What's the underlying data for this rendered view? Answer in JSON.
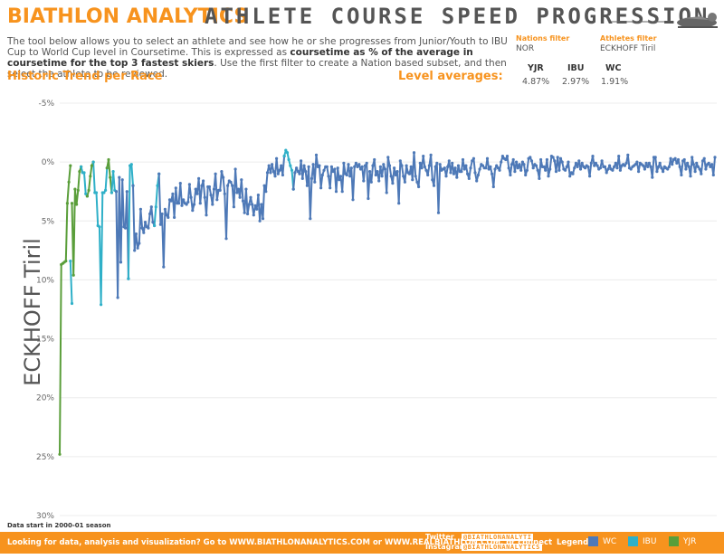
{
  "header": {
    "brand": "BIATHLON ANALYTICS",
    "title": "ATHLETE COURSE SPEED PROGRESSION",
    "intro_part1": "The tool below allows you to select an athlete and see how he or she progresses from Junior/Youth to IBU Cup to World Cup level in Coursetime. This is expressed as ",
    "intro_bold": "coursetime as % of the average in coursetime for the top 3 fastest skiers",
    "intro_part2": ". Use the first filter to create a Nation based subset, and then select the athlete to be reviewed."
  },
  "filters": {
    "nations_label": "Nations filter",
    "nations_value": "NOR",
    "athletes_label": "Athletes filter",
    "athletes_value": "ECKHOFF Tiril"
  },
  "sections": {
    "trend_title": "Historic Trend per Race",
    "averages_title": "Level averages:"
  },
  "level_averages": [
    {
      "label": "YJR",
      "value": "4.87%"
    },
    {
      "label": "IBU",
      "value": "2.97%"
    },
    {
      "label": "WC",
      "value": "1.91%"
    }
  ],
  "colors": {
    "WC": "#4e79b7",
    "IBU": "#2fb0c8",
    "YJR": "#5a9e3a",
    "accent": "#f7931e"
  },
  "chart_data": {
    "type": "line",
    "ylabel": "ECKHOFF Tiril",
    "yticks": [
      "-5%",
      "0%",
      "5%",
      "10%",
      "15%",
      "20%",
      "25%",
      "30%"
    ],
    "ylim": [
      -5,
      30
    ],
    "y_reversed": true,
    "grid": true,
    "x_label": "",
    "series": [
      {
        "name": "YJR",
        "values": [
          24.8,
          8.7,
          8.6,
          8.5,
          8.4,
          3.5,
          1.7,
          0.3
        ]
      },
      {
        "name": "IBU",
        "values": [
          8.4,
          12.0
        ]
      },
      {
        "name": "YJR",
        "values": [
          3.5,
          9.6,
          2.3,
          3.6,
          2.4,
          0.8,
          0.4
        ]
      },
      {
        "name": "IBU",
        "values": [
          0.4,
          0.9,
          0.9,
          2.7,
          2.9
        ]
      },
      {
        "name": "YJR",
        "values": [
          2.9,
          2.4,
          1.2,
          0.3,
          0.0
        ]
      },
      {
        "name": "IBU",
        "values": [
          0.0,
          2.6,
          2.6,
          5.4,
          5.5,
          12.1,
          2.6,
          2.6,
          2.4,
          0.5
        ]
      },
      {
        "name": "YJR",
        "values": [
          0.5,
          -0.2,
          1.3,
          2.6
        ]
      },
      {
        "name": "IBU",
        "values": [
          2.6,
          0.8,
          2.4,
          2.5
        ]
      },
      {
        "name": "WC",
        "values": [
          2.5,
          11.5,
          1.3,
          8.5,
          1.5,
          5.5,
          5.6,
          2.5,
          9.9
        ]
      },
      {
        "name": "IBU",
        "values": [
          9.9,
          0.3,
          0.2,
          2.0
        ]
      },
      {
        "name": "WC",
        "values": [
          2.0,
          7.5,
          6.1,
          7.3,
          6.9,
          4.0,
          5.6,
          6.0,
          5.1,
          5.5,
          5.6,
          4.4,
          3.8,
          5.1,
          5.4
        ]
      },
      {
        "name": "IBU",
        "values": [
          5.4,
          3.8,
          2.0,
          1.0
        ]
      },
      {
        "name": "WC",
        "values": [
          1.0,
          5.3,
          4.4,
          8.9,
          4.0,
          4.5,
          4.7,
          3.2,
          3.3,
          2.7,
          4.7,
          2.2,
          3.5,
          3.5,
          1.8,
          3.7,
          3.2,
          3.5,
          3.6,
          3.4,
          1.9,
          3.0,
          4.1,
          3.6,
          2.3,
          2.7,
          1.4,
          3.5,
          2.0,
          1.6,
          3.0,
          4.5,
          2.1,
          2.1,
          2.8,
          3.6,
          2.3,
          1.0,
          3.2,
          2.4,
          2.4,
          0.8,
          1.3,
          2.7,
          6.5,
          2.0,
          1.6,
          1.7,
          2.0,
          3.8,
          0.6,
          2.6,
          2.3,
          3.0,
          1.5,
          3.3,
          4.3,
          2.3,
          4.4,
          3.6,
          3.0,
          3.6,
          4.5,
          3.7,
          4.0,
          2.8,
          5.0,
          3.6,
          4.8,
          2.0,
          2.5,
          0.9,
          0.3,
          0.9,
          0.2,
          0.8,
          1.2,
          -0.3,
          1.0,
          0.7,
          0.3,
          1.1,
          -0.5
        ]
      },
      {
        "name": "IBU",
        "values": [
          -0.5,
          -1.0,
          -0.8,
          -0.2,
          0.3,
          0.7,
          2.3
        ]
      },
      {
        "name": "WC",
        "values": [
          2.3,
          0.9,
          0.5,
          0.8,
          1.0,
          -0.1,
          1.4,
          0.3,
          0.8,
          2.0,
          0.4,
          4.8,
          1.4,
          0.2,
          1.7,
          -0.6,
          0.4,
          0.3,
          2.2,
          1.1,
          0.7,
          0.4,
          0.4,
          1.2,
          2.2,
          0.4,
          0.8,
          0.6,
          2.5,
          0.5,
          1.5,
          1.2,
          2.5,
          0.1,
          1.0,
          1.1,
          0.2,
          1.2,
          0.5,
          3.2,
          0.4,
          0.1,
          0.4,
          0.2,
          0.6,
          0.4,
          1.6,
          0.3,
          0.1,
          3.1,
          0.8,
          1.7,
          0.3,
          -0.2,
          1.1,
          0.8,
          1.6,
          0.4,
          1.2,
          0.2,
          0.6,
          2.6,
          -0.4,
          0.3,
          1.2,
          1.8,
          0.5,
          1.1,
          0.8,
          3.5,
          -0.1,
          0.3,
          1.2,
          1.7,
          0.3,
          0.9,
          1.0,
          0.4,
          1.5,
          -0.8,
          1.2,
          1.7,
          2.1,
          0.1,
          0.5,
          -0.5,
          0.4,
          0.7,
          1.1,
          0.3,
          -0.6,
          1.5,
          2.0,
          0.4,
          0.1,
          4.3,
          0.2,
          0.7,
          0.6,
          0.5,
          1.2,
          0.4,
          -0.1,
          0.9,
          0.1,
          1.0,
          0.5,
          1.3,
          0.3,
          0.8,
          0.8,
          -0.2,
          0.6,
          0.3,
          1.0,
          1.4,
          0.5,
          -0.1,
          -0.3,
          0.9,
          1.6,
          1.1,
          0.6,
          0.2,
          0.3,
          0.5,
          0.5,
          -0.3,
          0.6,
          0.4,
          1.0,
          2.1,
          0.6,
          0.3,
          0.5,
          0.7,
          0.0,
          -0.5,
          -0.3,
          -0.2,
          -0.5,
          0.5,
          1.1,
          0.2,
          -0.2,
          0.8,
          0.0,
          0.5,
          0.2,
          0.7,
          0.0,
          0.2,
          1.1,
          0.7,
          -0.3,
          -0.4,
          -0.1,
          0.5,
          0.2,
          0.3,
          0.7,
          1.4,
          -0.2,
          0.4,
          0.4,
          0.7,
          -0.2,
          1.2,
          0.6,
          -0.5,
          -0.4,
          -0.1,
          0.8,
          -0.4,
          0.7,
          -0.3,
          0.0,
          0.6,
          0.7,
          0.4,
          0.0,
          1.2,
          0.9,
          1.0,
          0.5,
          0.1,
          0.4,
          -0.1,
          0.6,
          0.1,
          0.4,
          0.5,
          0.3,
          0.4,
          1.2,
          0.1,
          -0.5,
          0.3,
          0.1,
          0.3,
          0.6,
          0.5,
          -0.1,
          0.4,
          0.4,
          0.9,
          0.6,
          0.3,
          0.6,
          0.7,
          0.4,
          0.1,
          0.5,
          -0.5,
          0.7,
          0.3,
          0.2,
          0.3,
          0.1,
          -0.6,
          0.5,
          0.6,
          0.4,
          0.3,
          0.2,
          0.0,
          0.8,
          0.1,
          0.2,
          0.3,
          0.6,
          0.1,
          0.4,
          0.1,
          0.4,
          1.3,
          -0.4,
          -0.4,
          0.8,
          0.4,
          0.1,
          0.5,
          0.8,
          0.4,
          0.5,
          0.6,
          0.4,
          -0.3,
          0.2,
          -0.2,
          -0.3,
          0.1,
          -0.2,
          0.4,
          1.1,
          -0.1,
          -0.2,
          0.6,
          0.1,
          0.4,
          1.2,
          -0.4,
          0.2,
          0.8,
          0.1,
          0.4,
          0.6,
          1.0,
          -0.1,
          -0.3,
          0.6,
          0.2,
          0.1,
          0.4,
          0.2,
          1.1,
          -0.4
        ]
      }
    ]
  },
  "footnote": "Data start in 2000-01 season",
  "footer": {
    "cta": "Looking for data, analysis and visualization? Go to WWW.BIATHLONANALYTICS.COM or WWW.REALBIATHLON.COM, or connect",
    "twitter_label": "Twitter",
    "twitter_handle": "@BIATHLONANALYTI",
    "instagram_label": "Instagram",
    "instagram_handle": "@BIATHLONANALYTICS",
    "legend_title": "Legend:",
    "legend": [
      {
        "label": "WC",
        "color": "#4e79b7"
      },
      {
        "label": "IBU",
        "color": "#2fb0c8"
      },
      {
        "label": "YJR",
        "color": "#5a9e3a"
      }
    ]
  }
}
